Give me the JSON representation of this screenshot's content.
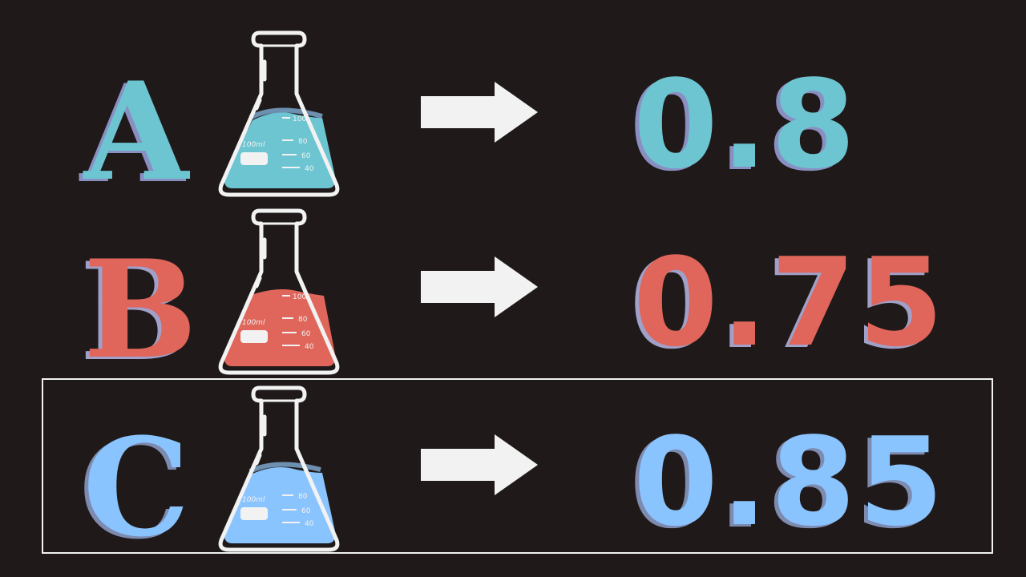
{
  "colors": {
    "background": "#1f1a19",
    "white": "#f2f2f2",
    "teal": "#6cc5d1",
    "red": "#e0655a",
    "blue": "#8ac4ff"
  },
  "flask_markings": {
    "volume_label": "100ml",
    "tick_100": "100",
    "tick_80": "80",
    "tick_60": "60",
    "tick_40": "40"
  },
  "rows": [
    {
      "letter": "A",
      "value": "0.8",
      "color": "#6cc5d1",
      "shadow": "#8a8fc2",
      "fill_level": 0.55,
      "highlighted": false
    },
    {
      "letter": "B",
      "value": "0.75",
      "color": "#e0655a",
      "shadow": "#a0a0c8",
      "fill_level": 0.5,
      "highlighted": false
    },
    {
      "letter": "C",
      "value": "0.85",
      "color": "#8ac4ff",
      "shadow": "#7e8bb0",
      "fill_level": 0.58,
      "highlighted": true
    }
  ],
  "icons": {
    "flask": "erlenmeyer-flask-icon",
    "arrow": "right-arrow-icon"
  }
}
